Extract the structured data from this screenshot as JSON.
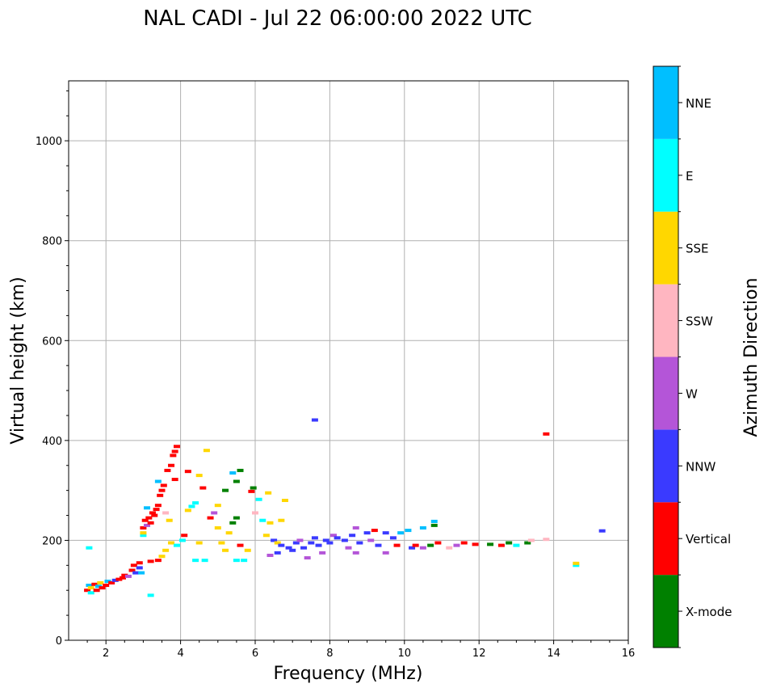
{
  "chart_data": {
    "type": "scatter",
    "title": "NAL CADI - Jul 22 06:00:00 2022 UTC",
    "xlabel": "Frequency (MHz)",
    "ylabel": "Virtual height (km)",
    "xlim": [
      1,
      16
    ],
    "ylim": [
      0,
      1120
    ],
    "xticks": [
      2,
      4,
      6,
      8,
      10,
      12,
      14,
      16
    ],
    "yticks": [
      0,
      200,
      400,
      600,
      800,
      1000
    ],
    "grid": true,
    "colorbar": {
      "label": "Azimuth Direction",
      "categories": [
        {
          "name": "X-mode",
          "color": "#008000"
        },
        {
          "name": "Vertical",
          "color": "#ff0000"
        },
        {
          "name": "NNW",
          "color": "#3a3aff"
        },
        {
          "name": "W",
          "color": "#b455d8"
        },
        {
          "name": "SSW",
          "color": "#ffb6c1"
        },
        {
          "name": "SSE",
          "color": "#ffd700"
        },
        {
          "name": "E",
          "color": "#00ffff"
        },
        {
          "name": "NNE",
          "color": "#00bfff"
        }
      ]
    },
    "points": [
      {
        "f": 1.5,
        "h": 100,
        "dir": "Vertical"
      },
      {
        "f": 1.55,
        "h": 110,
        "dir": "NNE"
      },
      {
        "f": 1.6,
        "h": 105,
        "dir": "SSE"
      },
      {
        "f": 1.6,
        "h": 95,
        "dir": "E"
      },
      {
        "f": 1.7,
        "h": 112,
        "dir": "Vertical"
      },
      {
        "f": 1.75,
        "h": 100,
        "dir": "Vertical"
      },
      {
        "f": 1.8,
        "h": 108,
        "dir": "NNE"
      },
      {
        "f": 1.85,
        "h": 115,
        "dir": "SSE"
      },
      {
        "f": 1.9,
        "h": 105,
        "dir": "Vertical"
      },
      {
        "f": 2.0,
        "h": 110,
        "dir": "Vertical"
      },
      {
        "f": 2.05,
        "h": 118,
        "dir": "NNE"
      },
      {
        "f": 2.15,
        "h": 115,
        "dir": "Vertical"
      },
      {
        "f": 2.25,
        "h": 120,
        "dir": "NNW"
      },
      {
        "f": 2.35,
        "h": 122,
        "dir": "Vertical"
      },
      {
        "f": 2.45,
        "h": 125,
        "dir": "Vertical"
      },
      {
        "f": 2.5,
        "h": 130,
        "dir": "Vertical"
      },
      {
        "f": 2.6,
        "h": 128,
        "dir": "W"
      },
      {
        "f": 2.7,
        "h": 140,
        "dir": "Vertical"
      },
      {
        "f": 2.75,
        "h": 150,
        "dir": "Vertical"
      },
      {
        "f": 2.8,
        "h": 135,
        "dir": "NNW"
      },
      {
        "f": 2.9,
        "h": 145,
        "dir": "NNW"
      },
      {
        "f": 2.95,
        "h": 135,
        "dir": "NNE"
      },
      {
        "f": 2.9,
        "h": 155,
        "dir": "Vertical"
      },
      {
        "f": 3.2,
        "h": 158,
        "dir": "Vertical"
      },
      {
        "f": 3.4,
        "h": 160,
        "dir": "Vertical"
      },
      {
        "f": 3.5,
        "h": 168,
        "dir": "SSE"
      },
      {
        "f": 3.6,
        "h": 180,
        "dir": "SSE"
      },
      {
        "f": 3.2,
        "h": 90,
        "dir": "E"
      },
      {
        "f": 3.0,
        "h": 210,
        "dir": "E"
      },
      {
        "f": 3.0,
        "h": 225,
        "dir": "Vertical"
      },
      {
        "f": 3.05,
        "h": 240,
        "dir": "Vertical"
      },
      {
        "f": 3.1,
        "h": 230,
        "dir": "W"
      },
      {
        "f": 3.15,
        "h": 245,
        "dir": "Vertical"
      },
      {
        "f": 3.2,
        "h": 235,
        "dir": "Vertical"
      },
      {
        "f": 3.25,
        "h": 255,
        "dir": "Vertical"
      },
      {
        "f": 3.3,
        "h": 250,
        "dir": "Vertical"
      },
      {
        "f": 3.35,
        "h": 262,
        "dir": "Vertical"
      },
      {
        "f": 3.4,
        "h": 270,
        "dir": "Vertical"
      },
      {
        "f": 3.45,
        "h": 290,
        "dir": "Vertical"
      },
      {
        "f": 3.5,
        "h": 300,
        "dir": "Vertical"
      },
      {
        "f": 3.55,
        "h": 310,
        "dir": "Vertical"
      },
      {
        "f": 3.4,
        "h": 318,
        "dir": "NNE"
      },
      {
        "f": 3.1,
        "h": 265,
        "dir": "NNE"
      },
      {
        "f": 3.0,
        "h": 215,
        "dir": "SSE"
      },
      {
        "f": 3.6,
        "h": 255,
        "dir": "SSW"
      },
      {
        "f": 3.65,
        "h": 340,
        "dir": "Vertical"
      },
      {
        "f": 3.75,
        "h": 350,
        "dir": "Vertical"
      },
      {
        "f": 3.8,
        "h": 370,
        "dir": "Vertical"
      },
      {
        "f": 3.85,
        "h": 378,
        "dir": "Vertical"
      },
      {
        "f": 3.9,
        "h": 388,
        "dir": "Vertical"
      },
      {
        "f": 3.85,
        "h": 322,
        "dir": "Vertical"
      },
      {
        "f": 3.7,
        "h": 240,
        "dir": "SSE"
      },
      {
        "f": 3.75,
        "h": 195,
        "dir": "SSE"
      },
      {
        "f": 3.9,
        "h": 190,
        "dir": "E"
      },
      {
        "f": 4.05,
        "h": 200,
        "dir": "E"
      },
      {
        "f": 4.1,
        "h": 210,
        "dir": "Vertical"
      },
      {
        "f": 4.2,
        "h": 260,
        "dir": "SSE"
      },
      {
        "f": 4.3,
        "h": 268,
        "dir": "E"
      },
      {
        "f": 4.4,
        "h": 275,
        "dir": "E"
      },
      {
        "f": 4.5,
        "h": 330,
        "dir": "SSE"
      },
      {
        "f": 4.2,
        "h": 338,
        "dir": "Vertical"
      },
      {
        "f": 4.6,
        "h": 305,
        "dir": "Vertical"
      },
      {
        "f": 4.7,
        "h": 380,
        "dir": "SSE"
      },
      {
        "f": 4.4,
        "h": 160,
        "dir": "E"
      },
      {
        "f": 4.65,
        "h": 160,
        "dir": "E"
      },
      {
        "f": 4.5,
        "h": 195,
        "dir": "SSE"
      },
      {
        "f": 4.8,
        "h": 245,
        "dir": "Vertical"
      },
      {
        "f": 4.9,
        "h": 255,
        "dir": "W"
      },
      {
        "f": 5.0,
        "h": 270,
        "dir": "SSE"
      },
      {
        "f": 5.0,
        "h": 225,
        "dir": "SSE"
      },
      {
        "f": 5.1,
        "h": 195,
        "dir": "SSE"
      },
      {
        "f": 5.2,
        "h": 180,
        "dir": "SSE"
      },
      {
        "f": 5.2,
        "h": 300,
        "dir": "X-mode"
      },
      {
        "f": 5.4,
        "h": 335,
        "dir": "NNE"
      },
      {
        "f": 5.5,
        "h": 318,
        "dir": "X-mode"
      },
      {
        "f": 5.6,
        "h": 340,
        "dir": "X-mode"
      },
      {
        "f": 5.5,
        "h": 245,
        "dir": "X-mode"
      },
      {
        "f": 5.4,
        "h": 235,
        "dir": "X-mode"
      },
      {
        "f": 5.3,
        "h": 215,
        "dir": "SSE"
      },
      {
        "f": 5.5,
        "h": 160,
        "dir": "E"
      },
      {
        "f": 5.7,
        "h": 160,
        "dir": "E"
      },
      {
        "f": 5.8,
        "h": 180,
        "dir": "SSE"
      },
      {
        "f": 5.6,
        "h": 190,
        "dir": "Vertical"
      },
      {
        "f": 5.9,
        "h": 298,
        "dir": "Vertical"
      },
      {
        "f": 5.95,
        "h": 305,
        "dir": "X-mode"
      },
      {
        "f": 6.0,
        "h": 255,
        "dir": "SSW"
      },
      {
        "f": 6.1,
        "h": 282,
        "dir": "E"
      },
      {
        "f": 6.2,
        "h": 240,
        "dir": "E"
      },
      {
        "f": 6.3,
        "h": 210,
        "dir": "SSE"
      },
      {
        "f": 6.35,
        "h": 295,
        "dir": "SSE"
      },
      {
        "f": 6.4,
        "h": 235,
        "dir": "SSE"
      },
      {
        "f": 6.5,
        "h": 200,
        "dir": "NNW"
      },
      {
        "f": 6.6,
        "h": 195,
        "dir": "SSE"
      },
      {
        "f": 6.7,
        "h": 240,
        "dir": "SSE"
      },
      {
        "f": 6.8,
        "h": 280,
        "dir": "SSE"
      },
      {
        "f": 6.4,
        "h": 170,
        "dir": "W"
      },
      {
        "f": 6.6,
        "h": 175,
        "dir": "NNW"
      },
      {
        "f": 6.7,
        "h": 190,
        "dir": "NNW"
      },
      {
        "f": 6.9,
        "h": 185,
        "dir": "NNW"
      },
      {
        "f": 7.1,
        "h": 195,
        "dir": "NNW"
      },
      {
        "f": 7.0,
        "h": 180,
        "dir": "NNW"
      },
      {
        "f": 7.2,
        "h": 200,
        "dir": "W"
      },
      {
        "f": 7.3,
        "h": 185,
        "dir": "NNW"
      },
      {
        "f": 7.5,
        "h": 195,
        "dir": "NNW"
      },
      {
        "f": 7.4,
        "h": 165,
        "dir": "W"
      },
      {
        "f": 7.6,
        "h": 205,
        "dir": "NNW"
      },
      {
        "f": 7.7,
        "h": 190,
        "dir": "NNW"
      },
      {
        "f": 7.8,
        "h": 175,
        "dir": "W"
      },
      {
        "f": 7.9,
        "h": 200,
        "dir": "NNW"
      },
      {
        "f": 8.1,
        "h": 210,
        "dir": "W"
      },
      {
        "f": 8.0,
        "h": 195,
        "dir": "NNW"
      },
      {
        "f": 8.2,
        "h": 205,
        "dir": "NNW"
      },
      {
        "f": 8.4,
        "h": 200,
        "dir": "NNW"
      },
      {
        "f": 8.5,
        "h": 185,
        "dir": "W"
      },
      {
        "f": 8.6,
        "h": 210,
        "dir": "NNW"
      },
      {
        "f": 8.7,
        "h": 175,
        "dir": "W"
      },
      {
        "f": 8.7,
        "h": 225,
        "dir": "W"
      },
      {
        "f": 8.8,
        "h": 195,
        "dir": "NNW"
      },
      {
        "f": 9.0,
        "h": 215,
        "dir": "NNW"
      },
      {
        "f": 9.1,
        "h": 200,
        "dir": "W"
      },
      {
        "f": 9.2,
        "h": 220,
        "dir": "Vertical"
      },
      {
        "f": 9.3,
        "h": 190,
        "dir": "NNW"
      },
      {
        "f": 9.5,
        "h": 215,
        "dir": "NNW"
      },
      {
        "f": 9.5,
        "h": 175,
        "dir": "W"
      },
      {
        "f": 9.7,
        "h": 205,
        "dir": "NNW"
      },
      {
        "f": 9.8,
        "h": 190,
        "dir": "Vertical"
      },
      {
        "f": 9.9,
        "h": 215,
        "dir": "NNE"
      },
      {
        "f": 10.1,
        "h": 220,
        "dir": "NNE"
      },
      {
        "f": 10.2,
        "h": 185,
        "dir": "NNW"
      },
      {
        "f": 10.3,
        "h": 190,
        "dir": "Vertical"
      },
      {
        "f": 10.5,
        "h": 225,
        "dir": "NNE"
      },
      {
        "f": 10.5,
        "h": 185,
        "dir": "W"
      },
      {
        "f": 10.8,
        "h": 238,
        "dir": "NNE"
      },
      {
        "f": 10.8,
        "h": 230,
        "dir": "X-mode"
      },
      {
        "f": 10.7,
        "h": 190,
        "dir": "X-mode"
      },
      {
        "f": 10.9,
        "h": 195,
        "dir": "Vertical"
      },
      {
        "f": 11.2,
        "h": 185,
        "dir": "SSW"
      },
      {
        "f": 11.4,
        "h": 190,
        "dir": "W"
      },
      {
        "f": 11.6,
        "h": 195,
        "dir": "Vertical"
      },
      {
        "f": 11.9,
        "h": 192,
        "dir": "Vertical"
      },
      {
        "f": 12.3,
        "h": 192,
        "dir": "X-mode"
      },
      {
        "f": 12.6,
        "h": 190,
        "dir": "Vertical"
      },
      {
        "f": 12.8,
        "h": 195,
        "dir": "X-mode"
      },
      {
        "f": 13.0,
        "h": 190,
        "dir": "E"
      },
      {
        "f": 13.3,
        "h": 195,
        "dir": "X-mode"
      },
      {
        "f": 13.4,
        "h": 200,
        "dir": "SSW"
      },
      {
        "f": 13.8,
        "h": 202,
        "dir": "SSW"
      },
      {
        "f": 13.8,
        "h": 413,
        "dir": "Vertical"
      },
      {
        "f": 7.6,
        "h": 441,
        "dir": "NNW"
      },
      {
        "f": 14.6,
        "h": 150,
        "dir": "E"
      },
      {
        "f": 14.6,
        "h": 154,
        "dir": "SSE"
      },
      {
        "f": 15.3,
        "h": 219,
        "dir": "NNW"
      },
      {
        "f": 1.55,
        "h": 185,
        "dir": "E"
      }
    ]
  }
}
